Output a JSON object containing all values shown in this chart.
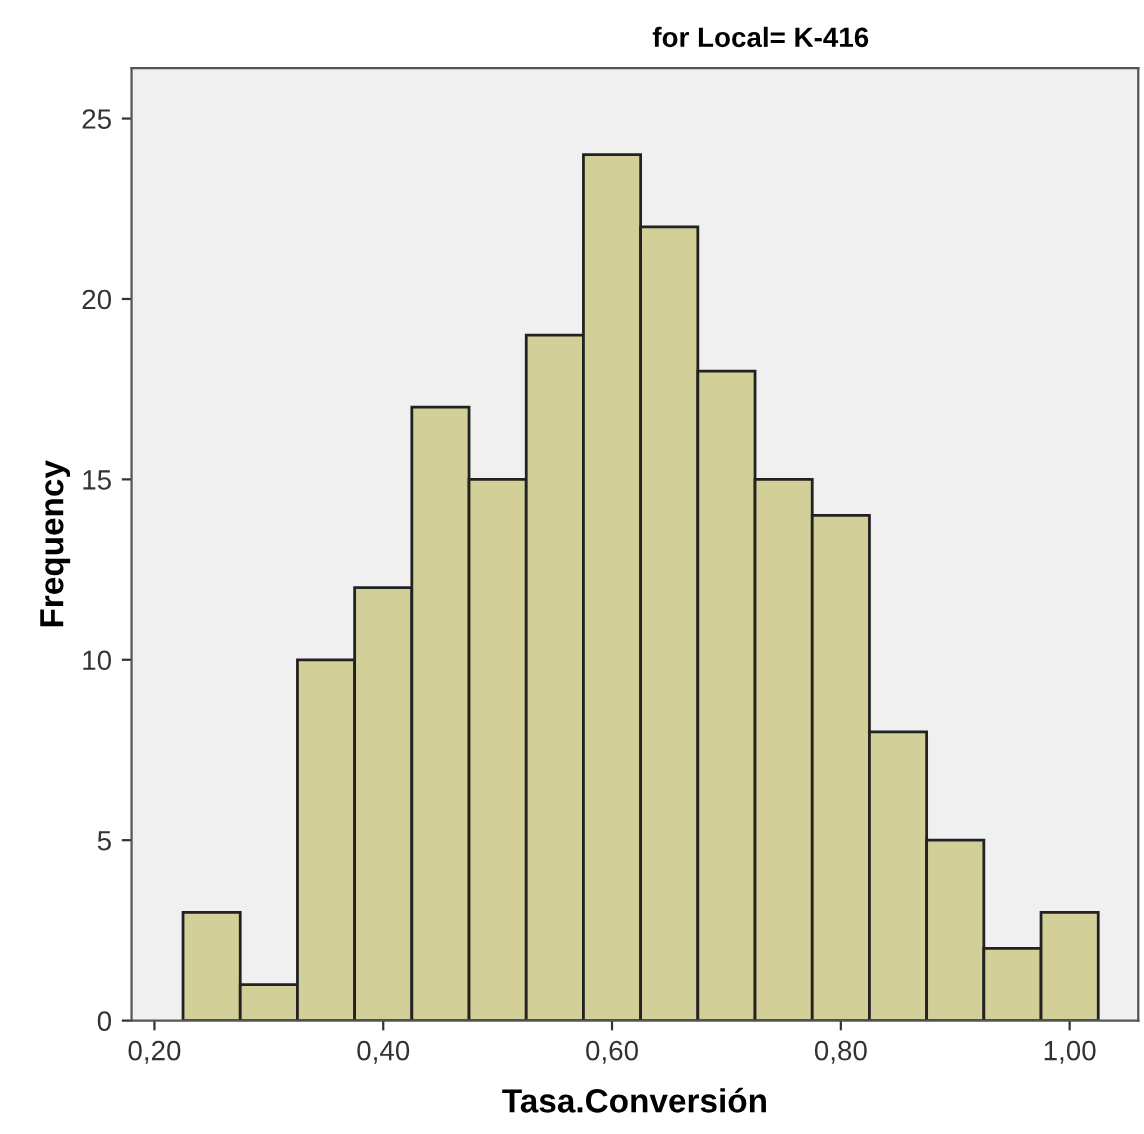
{
  "chart_data": {
    "type": "histogram",
    "title": "for Local= K-416",
    "xlabel": "Tasa.Conversión",
    "ylabel": "Frequency",
    "bins": [
      0.225,
      0.275,
      0.325,
      0.375,
      0.425,
      0.475,
      0.525,
      0.575,
      0.625,
      0.675,
      0.725,
      0.775,
      0.825,
      0.875,
      0.925,
      0.975,
      1.025
    ],
    "values": [
      3,
      1,
      10,
      12,
      17,
      15,
      19,
      24,
      22,
      18,
      15,
      14,
      8,
      5,
      2,
      3
    ],
    "color": "#d3cf99",
    "xlim": [
      0.18,
      1.06
    ],
    "xticks": [
      {
        "value": 0.2,
        "label": "0,20"
      },
      {
        "value": 0.4,
        "label": "0,40"
      },
      {
        "value": 0.6,
        "label": "0,60"
      },
      {
        "value": 0.8,
        "label": "0,80"
      },
      {
        "value": 1.0,
        "label": "1,00"
      }
    ],
    "ylim": [
      0,
      26.4
    ],
    "yticks": [
      0,
      5,
      10,
      15,
      20,
      25
    ],
    "grid": false,
    "legend": false
  }
}
